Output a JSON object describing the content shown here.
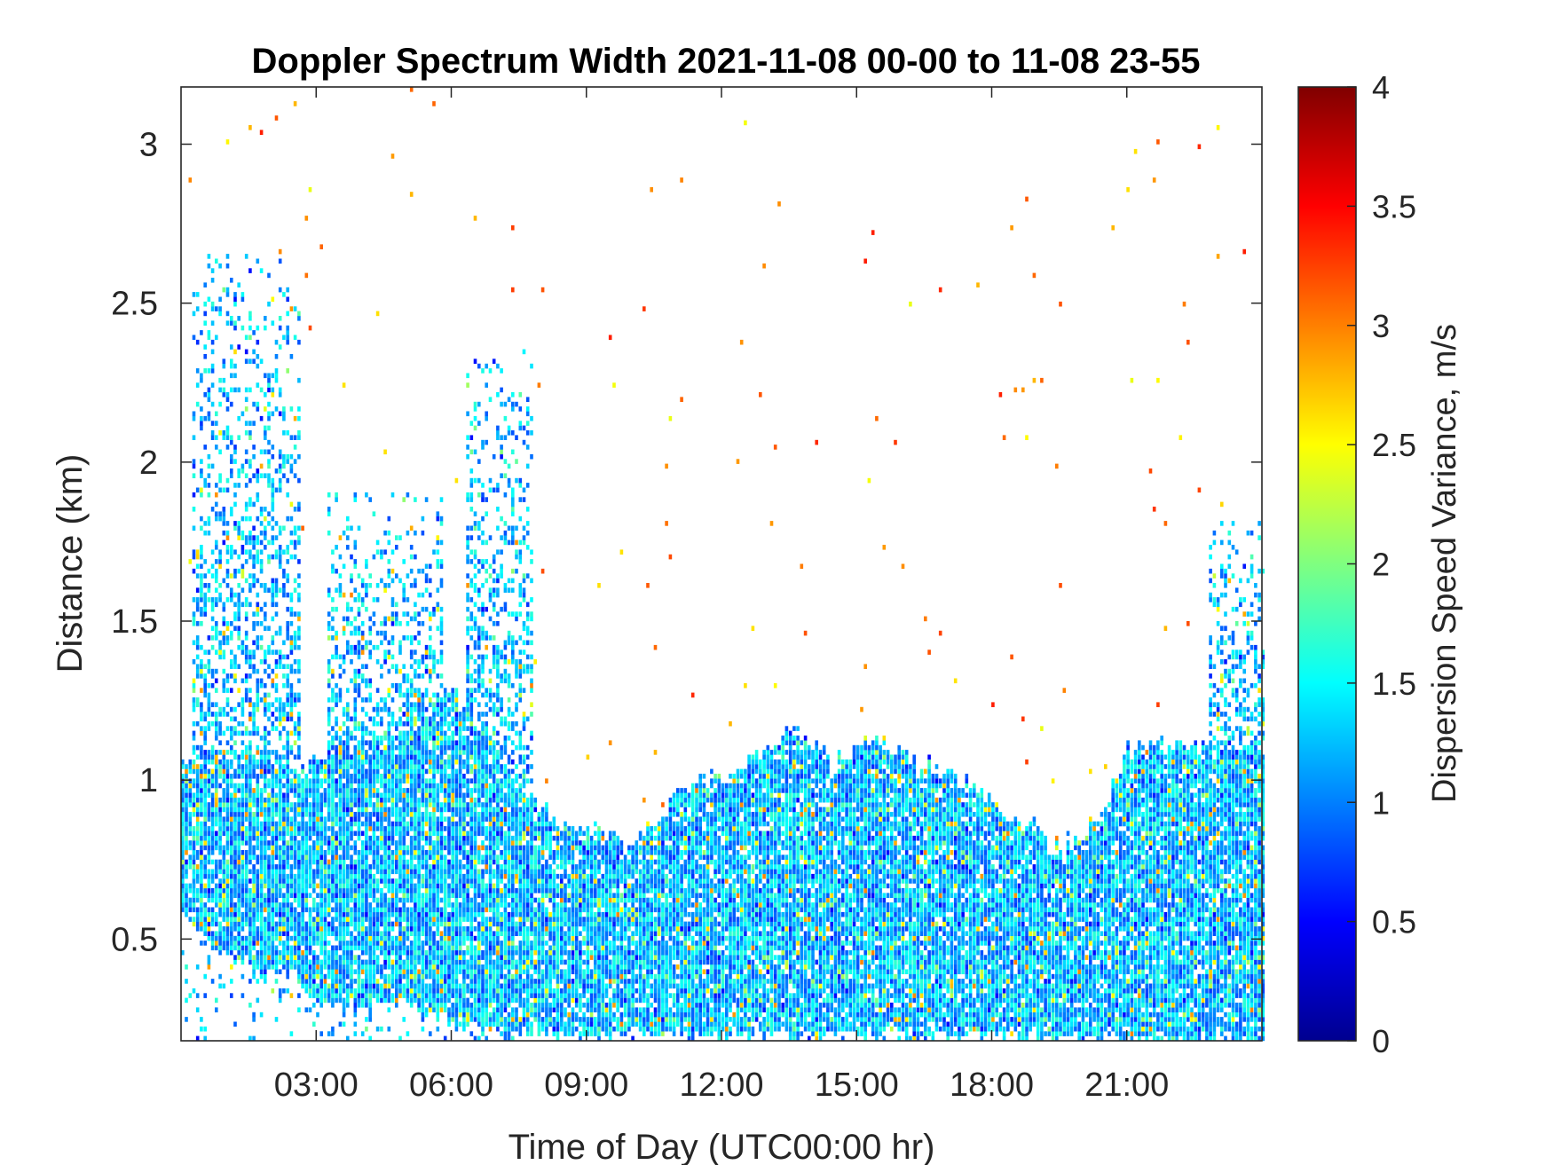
{
  "chart_data": {
    "type": "heatmap",
    "title": "Doppler Spectrum Width 2021-11-08 00-00 to 11-08 23-55",
    "xlabel": "Time of Day (UTC00:00 hr)",
    "ylabel": "Distance (km)",
    "xlim": [
      0,
      24
    ],
    "ylim": [
      0.18,
      3.18
    ],
    "x_ticks": [
      3,
      6,
      9,
      12,
      15,
      18,
      21
    ],
    "x_tick_labels": [
      "03:00",
      "06:00",
      "09:00",
      "12:00",
      "15:00",
      "18:00",
      "21:00"
    ],
    "y_ticks": [
      0.5,
      1,
      1.5,
      2,
      2.5,
      3
    ],
    "y_tick_labels": [
      "0.5",
      "1",
      "1.5",
      "2",
      "2.5",
      "3"
    ],
    "colorbar": {
      "label": "Dispersion Speed Variance, m/s",
      "range": [
        0,
        4
      ],
      "colormap": "jet",
      "ticks": [
        0,
        0.5,
        1,
        1.5,
        2,
        2.5,
        3,
        3.5,
        4
      ],
      "tick_labels": [
        "0",
        "0.5",
        "1",
        "1.5",
        "2",
        "2.5",
        "3",
        "3.5",
        "4"
      ]
    },
    "time_resolution_hr": 0.0833,
    "layer_top_km": [
      [
        0.0,
        1.05
      ],
      [
        0.5,
        1.05
      ],
      [
        1.0,
        1.08
      ],
      [
        1.5,
        1.1
      ],
      [
        2.0,
        1.08
      ],
      [
        2.5,
        1.0
      ],
      [
        3.0,
        1.05
      ],
      [
        3.5,
        1.1
      ],
      [
        4.0,
        1.12
      ],
      [
        4.5,
        1.1
      ],
      [
        5.0,
        1.15
      ],
      [
        5.5,
        1.2
      ],
      [
        6.0,
        1.3
      ],
      [
        6.5,
        1.2
      ],
      [
        7.0,
        1.05
      ],
      [
        7.5,
        0.95
      ],
      [
        8.0,
        0.9
      ],
      [
        8.5,
        0.85
      ],
      [
        9.0,
        0.85
      ],
      [
        9.5,
        0.82
      ],
      [
        10.0,
        0.8
      ],
      [
        10.5,
        0.85
      ],
      [
        11.0,
        0.95
      ],
      [
        11.5,
        0.98
      ],
      [
        12.0,
        1.0
      ],
      [
        12.5,
        1.05
      ],
      [
        13.0,
        1.08
      ],
      [
        13.5,
        1.15
      ],
      [
        14.0,
        1.12
      ],
      [
        14.5,
        1.05
      ],
      [
        15.0,
        1.1
      ],
      [
        15.5,
        1.12
      ],
      [
        16.0,
        1.08
      ],
      [
        16.5,
        1.05
      ],
      [
        17.0,
        1.02
      ],
      [
        17.5,
        1.0
      ],
      [
        18.0,
        0.92
      ],
      [
        18.5,
        0.85
      ],
      [
        19.0,
        0.85
      ],
      [
        19.5,
        0.78
      ],
      [
        20.0,
        0.82
      ],
      [
        20.5,
        0.9
      ],
      [
        21.0,
        1.08
      ],
      [
        21.5,
        1.1
      ],
      [
        22.0,
        1.1
      ],
      [
        22.5,
        1.1
      ],
      [
        23.0,
        1.1
      ],
      [
        23.5,
        1.1
      ],
      [
        24.0,
        1.1
      ]
    ],
    "layer_bottom_km": [
      [
        0.0,
        0.6
      ],
      [
        0.5,
        0.5
      ],
      [
        1.0,
        0.45
      ],
      [
        1.5,
        0.4
      ],
      [
        2.0,
        0.36
      ],
      [
        2.5,
        0.38
      ],
      [
        3.0,
        0.3
      ],
      [
        3.5,
        0.28
      ],
      [
        4.0,
        0.26
      ],
      [
        4.5,
        0.28
      ],
      [
        5.0,
        0.3
      ],
      [
        5.5,
        0.26
      ],
      [
        6.0,
        0.24
      ],
      [
        6.5,
        0.22
      ],
      [
        7.0,
        0.2
      ],
      [
        24.0,
        0.18
      ]
    ],
    "upper_plumes": [
      {
        "t_start": 0.2,
        "t_end": 2.6,
        "top_km": 2.65
      },
      {
        "t_start": 3.2,
        "t_end": 5.8,
        "top_km": 1.9
      },
      {
        "t_start": 6.3,
        "t_end": 7.8,
        "top_km": 2.35
      },
      {
        "t_start": 22.8,
        "t_end": 24.0,
        "top_km": 1.8
      }
    ],
    "dominant_value_range": [
      0.8,
      1.7
    ]
  }
}
